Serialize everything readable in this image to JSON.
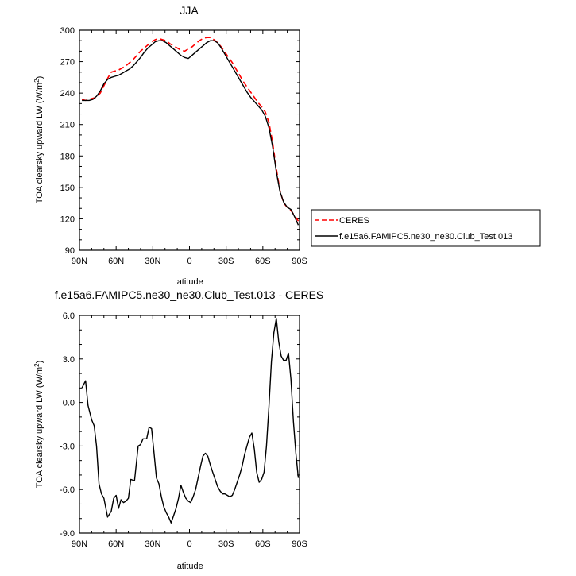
{
  "chart_data": [
    {
      "type": "line",
      "title": "JJA",
      "xlabel": "latitude",
      "ylabel": "TOA clearsky upward LW (W/m",
      "ylabel_sup": "2",
      "ylabel_tail": ")",
      "xlim": [
        90,
        -90
      ],
      "ylim": [
        90,
        300
      ],
      "xticks": [
        90,
        60,
        30,
        0,
        -30,
        -60,
        -90
      ],
      "xtick_labels": [
        "90N",
        "60N",
        "30N",
        "0",
        "30S",
        "60S",
        "90S"
      ],
      "yticks": [
        90,
        120,
        150,
        180,
        210,
        240,
        270,
        300
      ],
      "ytick_labels": [
        "90",
        "120",
        "150",
        "180",
        "210",
        "240",
        "270",
        "300"
      ],
      "legend": "right",
      "series": [
        {
          "name": "CERES",
          "color": "#ff0000",
          "dashed": true,
          "x": [
            88,
            85,
            82,
            79,
            76,
            73,
            70,
            67,
            64,
            61,
            58,
            55,
            52,
            49,
            46,
            43,
            40,
            37,
            34,
            31,
            28,
            25,
            22,
            19,
            16,
            13,
            10,
            7,
            4,
            1,
            -2,
            -5,
            -8,
            -11,
            -14,
            -17,
            -20,
            -23,
            -26,
            -29,
            -32,
            -35,
            -38,
            -41,
            -44,
            -47,
            -50,
            -53,
            -56,
            -59,
            -62,
            -65,
            -68,
            -71,
            -74,
            -77,
            -80,
            -83,
            -86,
            -89
          ],
          "y": [
            234,
            233,
            234,
            235,
            236,
            240,
            247,
            254,
            260,
            261,
            262,
            264,
            266,
            269,
            272,
            276,
            280,
            283,
            286,
            289,
            291,
            292,
            291,
            290,
            287,
            285,
            283,
            281,
            280,
            282,
            284,
            287,
            290,
            292,
            293,
            293,
            291,
            288,
            284,
            279,
            274,
            269,
            263,
            257,
            251,
            246,
            241,
            236,
            231,
            227,
            222,
            212,
            193,
            168,
            147,
            135,
            131,
            128,
            123,
            118
          ]
        },
        {
          "name": "f.e15a6.FAMIPC5.ne30_ne30.Club_Test.013",
          "color": "#000000",
          "dashed": false,
          "x": [
            88,
            85,
            82,
            79,
            76,
            73,
            70,
            67,
            64,
            61,
            58,
            55,
            52,
            49,
            46,
            43,
            40,
            37,
            34,
            31,
            28,
            25,
            22,
            19,
            16,
            13,
            10,
            7,
            4,
            1,
            -2,
            -5,
            -8,
            -11,
            -14,
            -17,
            -20,
            -23,
            -26,
            -29,
            -32,
            -35,
            -38,
            -41,
            -44,
            -47,
            -50,
            -53,
            -56,
            -59,
            -62,
            -65,
            -68,
            -71,
            -74,
            -77,
            -80,
            -83,
            -86,
            -89
          ],
          "y": [
            233,
            233,
            233,
            234,
            237,
            242,
            249,
            253,
            255,
            256,
            257,
            259,
            261,
            263,
            266,
            270,
            274,
            279,
            283,
            286,
            289,
            290,
            290,
            288,
            285,
            282,
            279,
            276,
            274,
            273,
            276,
            279,
            282,
            285,
            288,
            290,
            290,
            288,
            283,
            277,
            271,
            265,
            259,
            253,
            247,
            241,
            236,
            232,
            228,
            224,
            218,
            207,
            189,
            165,
            146,
            136,
            131,
            129,
            122,
            114
          ]
        }
      ]
    },
    {
      "type": "line",
      "title": "f.e15a6.FAMIPC5.ne30_ne30.Club_Test.013 - CERES",
      "xlabel": "latitude",
      "ylabel": "TOA clearsky upward LW (W/m",
      "ylabel_sup": "2",
      "ylabel_tail": ")",
      "xlim": [
        90,
        -90
      ],
      "ylim": [
        -9.0,
        6.0
      ],
      "xticks": [
        90,
        60,
        30,
        0,
        -30,
        -60,
        -90
      ],
      "xtick_labels": [
        "90N",
        "60N",
        "30N",
        "0",
        "30S",
        "60S",
        "90S"
      ],
      "yticks": [
        -9,
        -6,
        -3,
        0,
        3,
        6
      ],
      "ytick_labels": [
        "-9.0",
        "-6.0",
        "-3.0",
        "0.0",
        "3.0",
        "6.0"
      ],
      "series": [
        {
          "color": "#000000",
          "dashed": false,
          "x": [
            88,
            85,
            83,
            80,
            78,
            76,
            74,
            72,
            70,
            67,
            64,
            62,
            60,
            58,
            56,
            54,
            52,
            50,
            48,
            45,
            42,
            40,
            38,
            35,
            33,
            31,
            29,
            27,
            25,
            23,
            21,
            19,
            17,
            15,
            13,
            11,
            9,
            7,
            5,
            3,
            1,
            -1,
            -3,
            -5,
            -7,
            -9,
            -11,
            -13,
            -15,
            -17,
            -19,
            -21,
            -23,
            -25,
            -27,
            -29,
            -31,
            -33,
            -35,
            -37,
            -39,
            -41,
            -43,
            -45,
            -47,
            -49,
            -51,
            -53,
            -55,
            -57,
            -59,
            -61,
            -63,
            -65,
            -67,
            -69,
            -71,
            -73,
            -75,
            -77,
            -79,
            -81,
            -83,
            -85,
            -87,
            -89
          ],
          "y": [
            1.0,
            1.5,
            -0.2,
            -1.2,
            -1.6,
            -3.0,
            -5.6,
            -6.3,
            -6.6,
            -7.9,
            -7.5,
            -6.6,
            -6.4,
            -7.3,
            -6.7,
            -6.9,
            -6.8,
            -6.6,
            -5.3,
            -5.4,
            -3.0,
            -2.9,
            -2.5,
            -2.5,
            -1.7,
            -1.8,
            -3.5,
            -5.2,
            -5.6,
            -6.5,
            -7.2,
            -7.6,
            -7.9,
            -8.3,
            -7.8,
            -7.3,
            -6.6,
            -5.7,
            -6.2,
            -6.6,
            -6.8,
            -6.9,
            -6.5,
            -6.0,
            -5.2,
            -4.4,
            -3.7,
            -3.5,
            -3.7,
            -4.3,
            -4.8,
            -5.3,
            -5.8,
            -6.1,
            -6.3,
            -6.3,
            -6.4,
            -6.5,
            -6.4,
            -6.0,
            -5.5,
            -5.0,
            -4.4,
            -3.6,
            -3.0,
            -2.4,
            -2.1,
            -3.2,
            -4.8,
            -5.5,
            -5.3,
            -4.8,
            -3.0,
            -0.3,
            2.8,
            4.8,
            5.8,
            4.2,
            3.2,
            2.9,
            2.9,
            3.4,
            1.6,
            -1.3,
            -3.5,
            -5.2
          ]
        }
      ]
    }
  ]
}
